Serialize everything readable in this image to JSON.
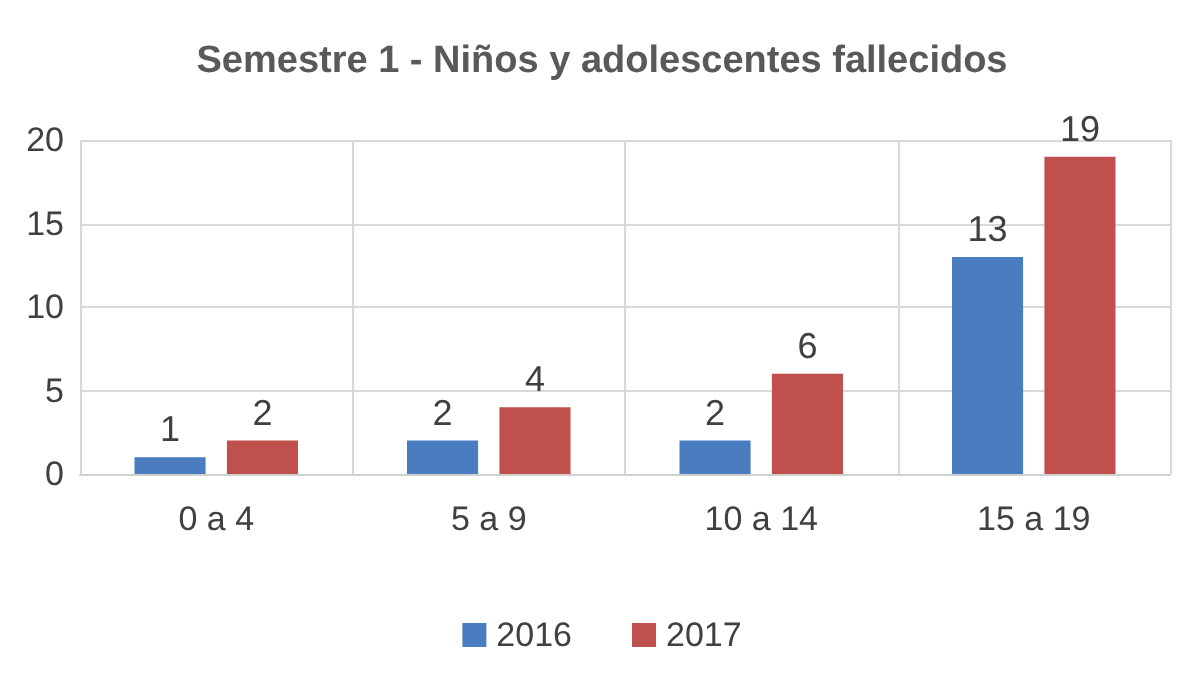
{
  "chart_data": {
    "type": "bar",
    "title": "Semestre 1 - Niños y adolescentes fallecidos",
    "categories": [
      "0 a 4",
      "5 a 9",
      "10 a 14",
      "15 a 19"
    ],
    "series": [
      {
        "name": "2016",
        "color": "#4a7cc0",
        "values": [
          1,
          2,
          2,
          13
        ]
      },
      {
        "name": "2017",
        "color": "#c0504d",
        "values": [
          2,
          4,
          6,
          19
        ]
      }
    ],
    "ylim": [
      0,
      20
    ],
    "yticks": [
      0,
      5,
      10,
      15,
      20
    ],
    "grid": true,
    "legend": "bottom",
    "data_labels": true
  }
}
